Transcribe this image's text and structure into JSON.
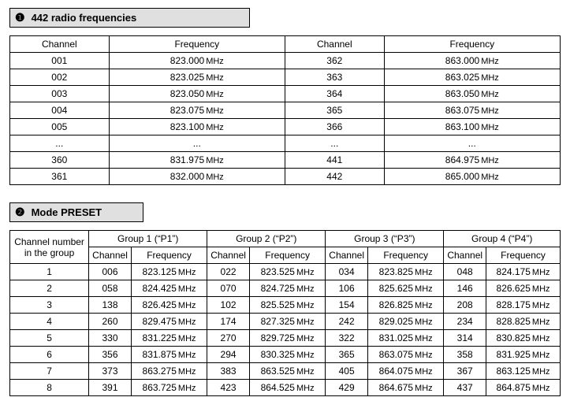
{
  "section1": {
    "marker": "❶",
    "title": "442 radio frequencies",
    "headers": {
      "channel": "Channel",
      "frequency": "Frequency"
    },
    "unit": "MHz",
    "rows": [
      {
        "c1": "001",
        "f1": "823.000",
        "c2": "362",
        "f2": "863.000"
      },
      {
        "c1": "002",
        "f1": "823.025",
        "c2": "363",
        "f2": "863.025"
      },
      {
        "c1": "003",
        "f1": "823.050",
        "c2": "364",
        "f2": "863.050"
      },
      {
        "c1": "004",
        "f1": "823.075",
        "c2": "365",
        "f2": "863.075"
      },
      {
        "c1": "005",
        "f1": "823.100",
        "c2": "366",
        "f2": "863.100"
      },
      {
        "c1": "...",
        "f1": "...",
        "c2": "...",
        "f2": "...",
        "ellipsis": true
      },
      {
        "c1": "360",
        "f1": "831.975",
        "c2": "441",
        "f2": "864.975"
      },
      {
        "c1": "361",
        "f1": "832.000",
        "c2": "442",
        "f2": "865.000"
      }
    ]
  },
  "section2": {
    "marker": "❷",
    "title": "Mode PRESET",
    "rowhdr_line1": "Channel number",
    "rowhdr_line2": "in the group",
    "subheaders": {
      "channel": "Channel",
      "frequency": "Frequency"
    },
    "unit": "MHz",
    "groups": [
      {
        "label": "Group 1 (“P1”)"
      },
      {
        "label": "Group 2 (“P2”)"
      },
      {
        "label": "Group 3 (“P3”)"
      },
      {
        "label": "Group 4 (“P4”)"
      }
    ],
    "rows": [
      {
        "n": "1",
        "g": [
          {
            "c": "006",
            "f": "823.125"
          },
          {
            "c": "022",
            "f": "823.525"
          },
          {
            "c": "034",
            "f": "823.825"
          },
          {
            "c": "048",
            "f": "824.175"
          }
        ]
      },
      {
        "n": "2",
        "g": [
          {
            "c": "058",
            "f": "824.425"
          },
          {
            "c": "070",
            "f": "824.725"
          },
          {
            "c": "106",
            "f": "825.625"
          },
          {
            "c": "146",
            "f": "826.625"
          }
        ]
      },
      {
        "n": "3",
        "g": [
          {
            "c": "138",
            "f": "826.425"
          },
          {
            "c": "102",
            "f": "825.525"
          },
          {
            "c": "154",
            "f": "826.825"
          },
          {
            "c": "208",
            "f": "828.175"
          }
        ]
      },
      {
        "n": "4",
        "g": [
          {
            "c": "260",
            "f": "829.475"
          },
          {
            "c": "174",
            "f": "827.325"
          },
          {
            "c": "242",
            "f": "829.025"
          },
          {
            "c": "234",
            "f": "828.825"
          }
        ]
      },
      {
        "n": "5",
        "g": [
          {
            "c": "330",
            "f": "831.225"
          },
          {
            "c": "270",
            "f": "829.725"
          },
          {
            "c": "322",
            "f": "831.025"
          },
          {
            "c": "314",
            "f": "830.825"
          }
        ]
      },
      {
        "n": "6",
        "g": [
          {
            "c": "356",
            "f": "831.875"
          },
          {
            "c": "294",
            "f": "830.325"
          },
          {
            "c": "365",
            "f": "863.075"
          },
          {
            "c": "358",
            "f": "831.925"
          }
        ]
      },
      {
        "n": "7",
        "g": [
          {
            "c": "373",
            "f": "863.275"
          },
          {
            "c": "383",
            "f": "863.525"
          },
          {
            "c": "405",
            "f": "864.075"
          },
          {
            "c": "367",
            "f": "863.125"
          }
        ]
      },
      {
        "n": "8",
        "g": [
          {
            "c": "391",
            "f": "863.725"
          },
          {
            "c": "423",
            "f": "864.525"
          },
          {
            "c": "429",
            "f": "864.675"
          },
          {
            "c": "437",
            "f": "864.875"
          }
        ]
      }
    ]
  },
  "colors": {
    "header_bg": "#e0e0e0",
    "border": "#000000",
    "page_bg": "#ffffff",
    "text": "#000000"
  },
  "typography": {
    "body_fontsize_pt": 9,
    "header_fontsize_pt": 10
  }
}
